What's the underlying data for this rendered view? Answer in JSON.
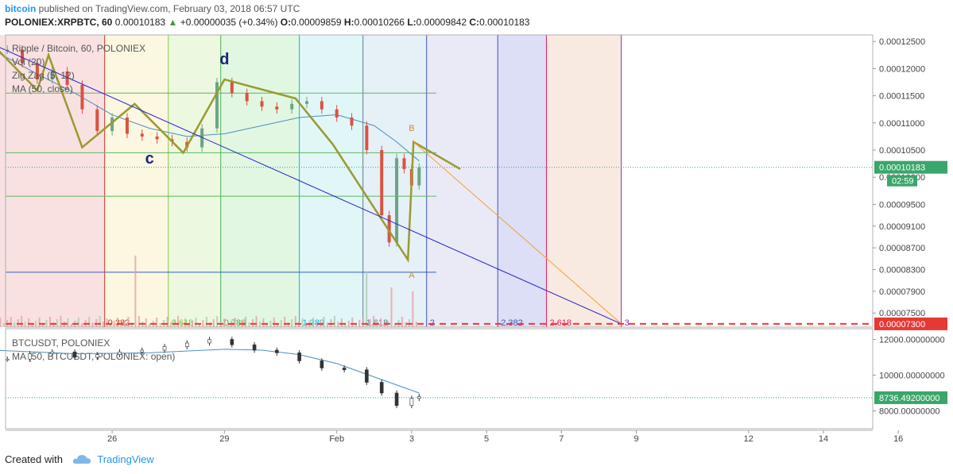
{
  "header": {
    "author": "bitcoin",
    "published": "published on TradingView.com, February 03, 2018 06:57 UTC",
    "symbol": "POLONIEX:XRPBTC, 60",
    "last": "0.00010183",
    "change": "+0.00000035 (+0.34%)",
    "o_label": "O:",
    "o": "0.00009859",
    "h_label": "H:",
    "h": "0.00010266",
    "l_label": "L:",
    "l": "0.00009842",
    "c_label": "C:",
    "c": "0.00010183"
  },
  "legend_main": [
    "Ripple / Bitcoin, 60, POLONIEX",
    "Vol (20)",
    "Zig Zag (5, 12)",
    "MA (50, close)"
  ],
  "legend_sub": [
    "BTCUSDT, POLONIEX",
    "MA (50, BTCUSDT, POLONIEX: open)"
  ],
  "footer": {
    "created": "Created with",
    "brand": "TradingView"
  },
  "colors": {
    "up": "#6ba583",
    "down": "#d75442",
    "zigzag": "#9a9a30",
    "ma": "#4a90c0",
    "fan": "#2424d0",
    "fan2": "#f5a035",
    "dashed": "#ff3030"
  },
  "chart_data": [
    {
      "type": "line",
      "title": "Ripple / Bitcoin, 60, POLONIEX",
      "y_axis_ticks": [
        "0.00012500",
        "0.00012000",
        "0.00011500",
        "0.00011000",
        "0.00010500",
        "0.00010000",
        "0.00009500",
        "0.00009100",
        "0.00008700",
        "0.00008300",
        "0.00007900",
        "0.00007500"
      ],
      "ylim": [
        7.24e-05,
        0.0001262
      ],
      "x_ticks": [
        {
          "label": "26",
          "x": 1.0
        },
        {
          "label": "29",
          "x": 4.0
        },
        {
          "label": "Feb",
          "x": 7.0
        },
        {
          "label": "3",
          "x": 9.0
        },
        {
          "label": "5",
          "x": 11.0
        },
        {
          "label": "7",
          "x": 13.0
        },
        {
          "label": "9",
          "x": 15.0
        },
        {
          "label": "12",
          "x": 18.0
        },
        {
          "label": "14",
          "x": 20.0
        },
        {
          "label": "16",
          "x": 22.0
        }
      ],
      "last_price_label": "0.00010183",
      "countdown_label": "02:59",
      "target_label": "0.00007300",
      "target_value": 7.3e-05,
      "series": [
        {
          "name": "Ripple / Bitcoin",
          "style": "candles",
          "x": [
            -1.8,
            -1.4,
            -1.0,
            -0.6,
            -0.2,
            0.2,
            0.6,
            1.0,
            1.4,
            1.8,
            2.2,
            2.6,
            3.0,
            3.4,
            3.8,
            4.2,
            4.6,
            5.0,
            5.4,
            5.8,
            6.2,
            6.6,
            7.0,
            7.4,
            7.8,
            8.2,
            8.4,
            8.6,
            8.8,
            9.0,
            9.2
          ],
          "values": [
            0.0001235,
            0.000121,
            0.000118,
            0.0001195,
            0.000117,
            0.0001125,
            0.0001085,
            0.000111,
            0.000108,
            0.0001075,
            0.000107,
            0.0001065,
            0.0001055,
            0.000109,
            0.0001175,
            0.0001155,
            0.000114,
            0.000113,
            0.0001125,
            0.0001135,
            0.000114,
            0.0001125,
            0.000111,
            0.0001095,
            0.000105,
            9.3e-05,
            8.8e-05,
            0.0001035,
            0.0001015,
            9.85e-05,
            0.0001018
          ]
        },
        {
          "name": "Zig Zag (5, 12)",
          "style": "line",
          "x": [
            -2.2,
            -1.0,
            -0.7,
            0.2,
            1.6,
            2.9,
            4.0,
            5.9,
            6.9,
            8.9,
            9.05,
            10.3
          ],
          "values": [
            0.0001245,
            0.000116,
            0.0001225,
            0.0001055,
            0.0001135,
            0.0001045,
            0.000118,
            0.0001145,
            0.000106,
            8.48e-05,
            0.0001065,
            0.0001015
          ]
        },
        {
          "name": "MA (50, close)",
          "style": "line",
          "x": [
            -2.2,
            -1.0,
            0.0,
            1.0,
            2.0,
            3.0,
            4.0,
            5.0,
            6.0,
            7.0,
            8.0,
            8.6,
            9.2
          ],
          "values": [
            0.0001235,
            0.000119,
            0.0001155,
            0.0001115,
            0.000109,
            0.0001075,
            0.000108,
            0.0001095,
            0.000111,
            0.0001115,
            0.0001095,
            0.0001065,
            0.000103
          ]
        }
      ],
      "fib_time_zones": [
        "0.382",
        "0.618",
        "0.786",
        "1.382",
        "1.618",
        "2",
        "2.382",
        "2.618",
        "3"
      ],
      "fib_time_x": [
        0.8,
        2.5,
        3.9,
        6.0,
        7.7,
        9.4,
        11.3,
        12.6,
        14.6
      ],
      "horizontal_levels": [
        0.0001155,
        0.0001045,
        9.65e-05,
        8.25e-05
      ],
      "annotations": [
        {
          "text": "d",
          "x": 4.0,
          "y": 0.0001208
        },
        {
          "text": "c",
          "x": 2.0,
          "y": 0.0001025
        },
        {
          "text": "B",
          "x": 9.0,
          "y": 0.0001085
        },
        {
          "text": "A",
          "x": 9.0,
          "y": 8.15e-05
        }
      ],
      "fan_lines": [
        {
          "from": [
            -2.2,
            0.0001245
          ],
          "to": [
            14.6,
            7.3e-05
          ]
        },
        {
          "from": [
            9.05,
            0.0001065
          ],
          "to": [
            14.6,
            7.3e-05
          ]
        }
      ]
    },
    {
      "type": "line",
      "title": "BTCUSDT, POLONIEX",
      "y_axis_ticks": [
        "12000.00000000",
        "10000.00000000",
        "8000.00000000"
      ],
      "ylim": [
        7000,
        12600
      ],
      "last_price_label": "8736.49200000",
      "series": [
        {
          "name": "BTCUSDT",
          "style": "candles",
          "x": [
            -1.8,
            -1.2,
            -0.6,
            0.0,
            0.6,
            1.2,
            1.8,
            2.4,
            3.0,
            3.6,
            4.2,
            4.8,
            5.4,
            6.0,
            6.6,
            7.2,
            7.8,
            8.2,
            8.6,
            9.0,
            9.2
          ],
          "values": [
            10900,
            11200,
            11300,
            11000,
            11150,
            11300,
            11400,
            11600,
            11800,
            12000,
            11700,
            11400,
            11250,
            10800,
            10400,
            10300,
            9600,
            9000,
            8300,
            8700,
            8800
          ]
        },
        {
          "name": "MA (50, BTCUSDT, POLONIEX: open)",
          "style": "line",
          "x": [
            -2.2,
            0.0,
            2.0,
            4.0,
            5.0,
            6.0,
            7.0,
            8.0,
            9.2
          ],
          "values": [
            11400,
            11200,
            11250,
            11450,
            11400,
            11150,
            10650,
            9900,
            9000
          ]
        }
      ]
    }
  ]
}
